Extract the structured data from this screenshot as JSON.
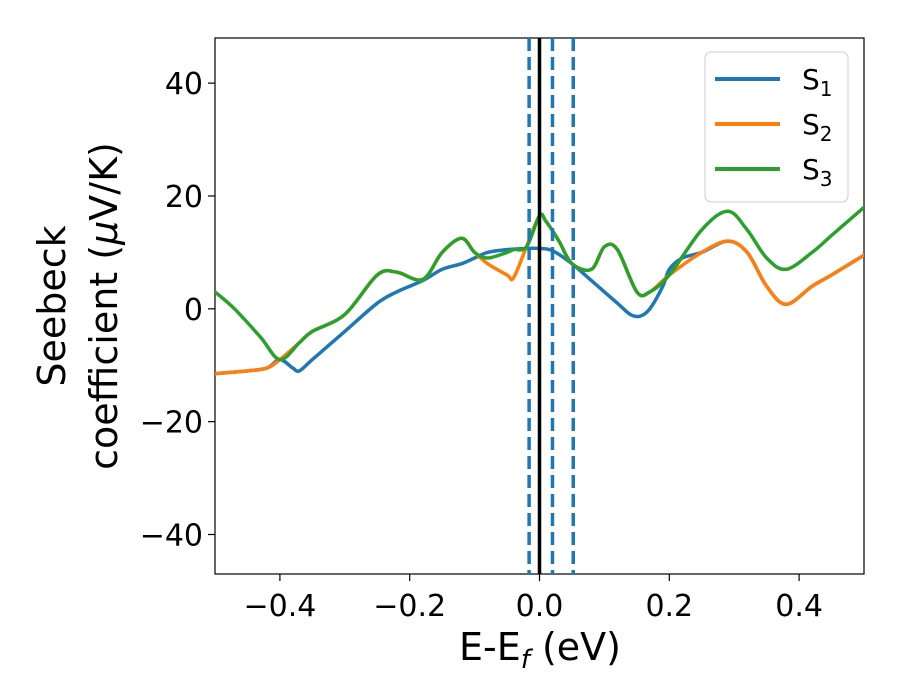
{
  "chart_data": {
    "type": "line",
    "title": "",
    "xlabel_main": "E-E",
    "xlabel_sub": "f",
    "xlabel_unit": " (eV)",
    "ylabel_line1": "Seebeck",
    "ylabel_line2_text": "coefficient  (",
    "ylabel_mu": "μ",
    "ylabel_unit": "V/K)",
    "xlim": [
      -0.5,
      0.5
    ],
    "ylim": [
      -47,
      48
    ],
    "x_ticks": [
      -0.4,
      -0.2,
      0.0,
      0.2,
      0.4
    ],
    "x_tick_labels": [
      "−0.4",
      "−0.2",
      "0.0",
      "0.2",
      "0.4"
    ],
    "y_ticks": [
      -40,
      -20,
      0,
      20,
      40
    ],
    "y_tick_labels": [
      "−40",
      "−20",
      "0",
      "20",
      "40"
    ],
    "legend_position": "top-right",
    "vertical_lines": [
      {
        "x": 0.0,
        "style": "solid",
        "color": "#000000"
      },
      {
        "x": -0.016,
        "style": "dashed",
        "color": "#1f77b4"
      },
      {
        "x": 0.02,
        "style": "dashed",
        "color": "#1f77b4"
      },
      {
        "x": 0.052,
        "style": "dashed",
        "color": "#1f77b4"
      }
    ],
    "series": [
      {
        "name": "S",
        "subscript": "1",
        "color": "#1f77b4",
        "x": [
          -0.5,
          -0.45,
          -0.42,
          -0.4,
          -0.38,
          -0.37,
          -0.35,
          -0.3,
          -0.25,
          -0.22,
          -0.18,
          -0.15,
          -0.12,
          -0.1,
          -0.08,
          -0.05,
          -0.02,
          0.0,
          0.02,
          0.05,
          0.08,
          0.1,
          0.12,
          0.14,
          0.155,
          0.17,
          0.19,
          0.2,
          0.22,
          0.25,
          0.29,
          0.32,
          0.35,
          0.38,
          0.42,
          0.45,
          0.5
        ],
        "values": [
          -11.5,
          -11,
          -10.5,
          -9,
          -10.5,
          -11,
          -9,
          -4,
          1,
          3,
          5,
          7,
          8,
          9,
          10,
          10.5,
          10.7,
          10.7,
          10.3,
          8,
          5,
          3,
          1,
          -1,
          -1.3,
          0,
          4,
          7,
          9,
          10,
          12,
          10,
          4,
          0.8,
          4,
          6,
          9.5
        ]
      },
      {
        "name": "S",
        "subscript": "2",
        "color": "#ff7f0e",
        "x": [
          -0.5,
          -0.45,
          -0.42,
          -0.4,
          -0.37,
          -0.35,
          -0.3,
          -0.25,
          -0.22,
          -0.18,
          -0.15,
          -0.12,
          -0.1,
          -0.08,
          -0.05,
          -0.04,
          -0.02,
          0.0,
          0.01,
          0.03,
          0.05,
          0.08,
          0.1,
          0.12,
          0.15,
          0.17,
          0.2,
          0.25,
          0.29,
          0.32,
          0.35,
          0.38,
          0.42,
          0.45,
          0.5
        ],
        "values": [
          -11.5,
          -11,
          -10.5,
          -9,
          -6,
          -4,
          -1,
          6,
          6.5,
          5.2,
          10,
          12.5,
          10,
          8,
          6,
          5.5,
          11,
          16.5,
          15.5,
          12,
          8,
          7,
          11,
          10.5,
          3,
          3,
          6,
          10,
          12,
          10,
          4,
          0.8,
          4,
          6,
          9.5
        ]
      },
      {
        "name": "S",
        "subscript": "3",
        "color": "#2ca02c",
        "x": [
          -0.5,
          -0.47,
          -0.43,
          -0.4,
          -0.37,
          -0.35,
          -0.3,
          -0.25,
          -0.22,
          -0.18,
          -0.15,
          -0.12,
          -0.1,
          -0.08,
          -0.05,
          -0.04,
          -0.02,
          0.0,
          0.01,
          0.03,
          0.05,
          0.08,
          0.1,
          0.12,
          0.15,
          0.17,
          0.2,
          0.25,
          0.29,
          0.32,
          0.35,
          0.38,
          0.42,
          0.45,
          0.5
        ],
        "values": [
          3,
          0,
          -5,
          -9,
          -6,
          -4,
          -1,
          6,
          6.5,
          5.2,
          10,
          12.5,
          10,
          9,
          10,
          10.5,
          11,
          16.5,
          15.5,
          12,
          8,
          7,
          11,
          10.5,
          3,
          3,
          6,
          14,
          17.3,
          14,
          9,
          7,
          10,
          13,
          18
        ]
      }
    ]
  }
}
